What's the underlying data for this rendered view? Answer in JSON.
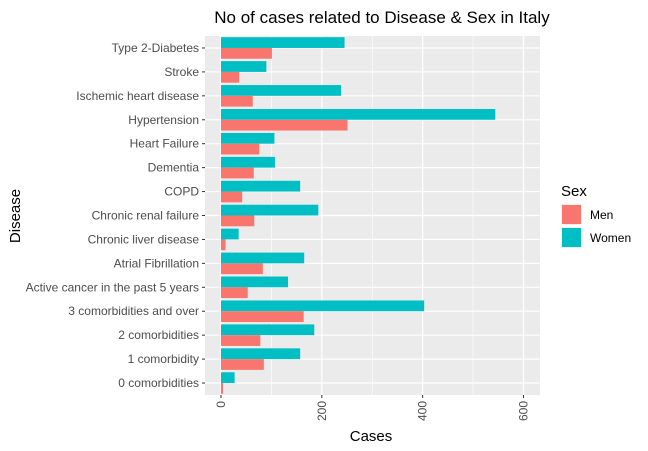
{
  "chart_data": {
    "type": "bar",
    "orientation": "horizontal",
    "title": "No of cases related to Disease & Sex in Italy",
    "xlabel": "Cases",
    "ylabel": "Disease",
    "xlim": [
      0,
      620
    ],
    "xticks": [
      0,
      200,
      400,
      600
    ],
    "grid": true,
    "legend_title": "Sex",
    "legend_position": "right",
    "categories": [
      "Type 2-Diabetes",
      "Stroke",
      "Ischemic heart disease",
      "Hypertension",
      "Heart Failure",
      "Dementia",
      "COPD",
      "Chronic renal failure",
      "Chronic liver disease",
      "Atrial Fibrillation",
      "Active cancer in the past 5 years",
      "3 comorbidities and over",
      "2 comorbidities",
      "1 comorbidity",
      "0 comorbidities"
    ],
    "series": [
      {
        "name": "Men",
        "color": "#F8766D",
        "values": [
          101,
          36,
          63,
          251,
          76,
          65,
          42,
          66,
          9,
          83,
          53,
          164,
          78,
          85,
          4
        ]
      },
      {
        "name": "Women",
        "color": "#00BFC4",
        "values": [
          245,
          90,
          238,
          544,
          106,
          107,
          157,
          193,
          35,
          165,
          133,
          403,
          185,
          157,
          27
        ]
      }
    ]
  },
  "colors": {
    "panel_background": "#EBEBEB",
    "grid_major": "#FFFFFF",
    "men": "#F8766D",
    "women": "#00BFC4"
  }
}
